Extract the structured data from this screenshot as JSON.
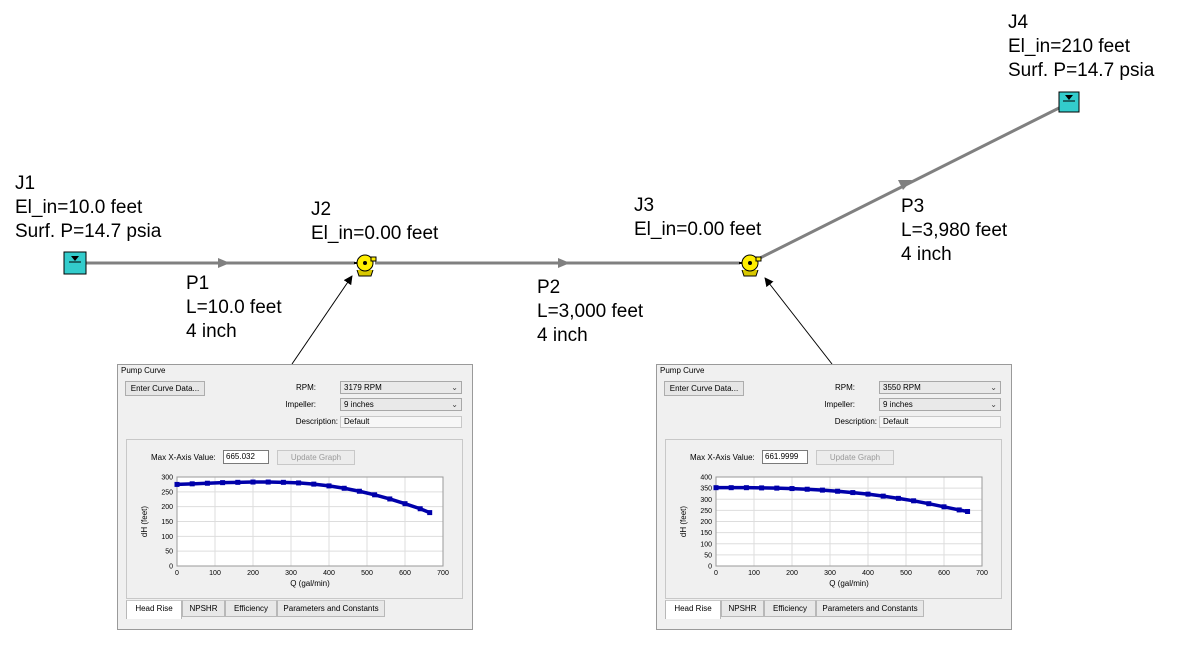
{
  "nodes": {
    "j1": {
      "name": "J1",
      "line1": "El_in=10.0 feet",
      "line2": "Surf. P=14.7 psia"
    },
    "j2": {
      "name": "J2",
      "line1": "El_in=0.00 feet"
    },
    "j3": {
      "name": "J3",
      "line1": "El_in=0.00 feet"
    },
    "j4": {
      "name": "J4",
      "line1": "El_in=210 feet",
      "line2": "Surf. P=14.7 psia"
    }
  },
  "pipes": {
    "p1": {
      "name": "P1",
      "length": "L=10.0 feet",
      "size": "4 inch"
    },
    "p2": {
      "name": "P2",
      "length": "L=3,000 feet",
      "size": "4 inch"
    },
    "p3": {
      "name": "P3",
      "length": "L=3,980 feet",
      "size": "4 inch"
    }
  },
  "colors": {
    "reservoir": "#33cccc",
    "pump": "#ffee00",
    "pipe": "#808080",
    "curve": "#0000aa"
  },
  "panels": [
    {
      "title": "Pump Curve",
      "enter_button": "Enter Curve Data...",
      "rpm_label": "RPM:",
      "rpm_value": "3179 RPM",
      "impeller_label": "Impeller:",
      "impeller_value": "9 inches",
      "description_label": "Description:",
      "description_value": "Default",
      "max_x_label": "Max X-Axis Value:",
      "max_x_value": "665.032",
      "update_button": "Update Graph",
      "tabs": [
        "Head Rise",
        "NPSHR",
        "Efficiency",
        "Parameters and Constants"
      ],
      "active_tab": 0,
      "chart_data": {
        "type": "scatter",
        "xlabel": "Q (gal/min)",
        "ylabel": "dH (feet)",
        "xlim": [
          0,
          700
        ],
        "ylim": [
          0,
          300
        ],
        "xticks": [
          "0",
          "100",
          "200",
          "300",
          "400",
          "500",
          "600",
          "700"
        ],
        "yticks": [
          "0",
          "50",
          "100",
          "150",
          "200",
          "250",
          "300"
        ],
        "grid": true,
        "x": [
          0,
          40,
          80,
          120,
          160,
          200,
          240,
          280,
          320,
          360,
          400,
          440,
          480,
          520,
          560,
          600,
          640,
          665
        ],
        "y": [
          275,
          277,
          279,
          281,
          282,
          283,
          283,
          282,
          280,
          276,
          270,
          262,
          252,
          240,
          226,
          210,
          193,
          180
        ]
      }
    },
    {
      "title": "Pump Curve",
      "enter_button": "Enter Curve Data...",
      "rpm_label": "RPM:",
      "rpm_value": "3550 RPM",
      "impeller_label": "Impeller:",
      "impeller_value": "9 inches",
      "description_label": "Description:",
      "description_value": "Default",
      "max_x_label": "Max X-Axis Value:",
      "max_x_value": "661.9999",
      "update_button": "Update Graph",
      "tabs": [
        "Head Rise",
        "NPSHR",
        "Efficiency",
        "Parameters and Constants"
      ],
      "active_tab": 0,
      "chart_data": {
        "type": "scatter",
        "xlabel": "Q (gal/min)",
        "ylabel": "dH (feet)",
        "xlim": [
          0,
          700
        ],
        "ylim": [
          0,
          400
        ],
        "xticks": [
          "0",
          "100",
          "200",
          "300",
          "400",
          "500",
          "600",
          "700"
        ],
        "yticks": [
          "0",
          "50",
          "100",
          "150",
          "200",
          "250",
          "300",
          "350",
          "400"
        ],
        "grid": true,
        "x": [
          0,
          40,
          80,
          120,
          160,
          200,
          240,
          280,
          320,
          360,
          400,
          440,
          480,
          520,
          560,
          600,
          640,
          662
        ],
        "y": [
          352,
          352,
          352,
          351,
          350,
          348,
          345,
          341,
          336,
          330,
          323,
          314,
          304,
          293,
          280,
          266,
          252,
          245
        ]
      }
    }
  ]
}
